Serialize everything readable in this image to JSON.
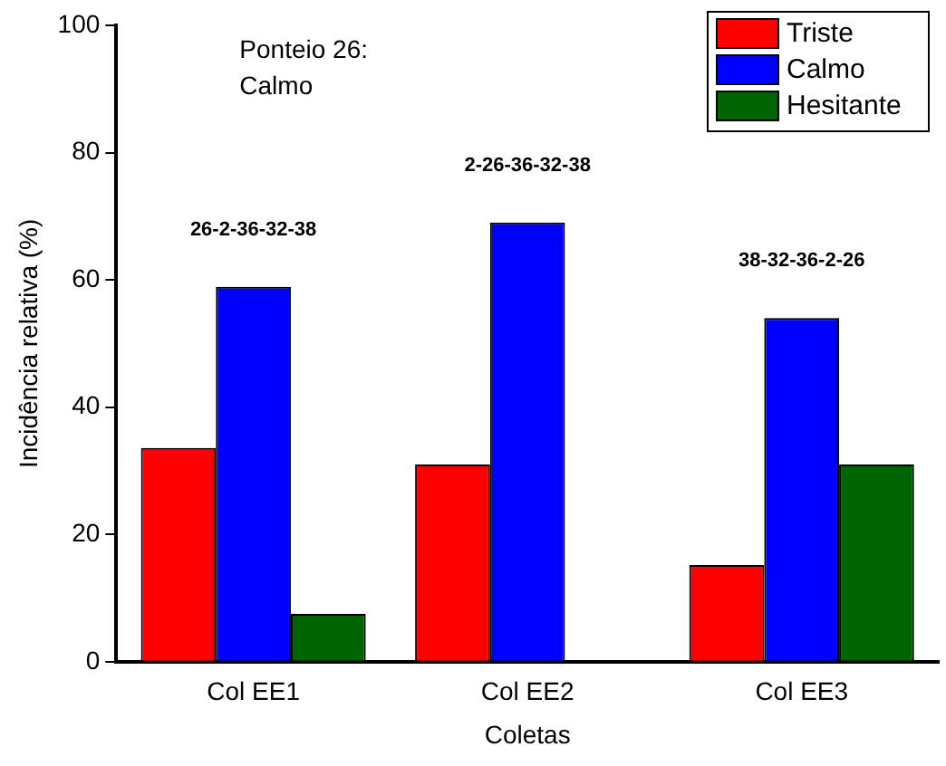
{
  "chart_data": {
    "type": "bar",
    "xlabel": "Coletas",
    "ylabel": "Incidência relativa (%)",
    "categories": [
      "Col EE1",
      "Col EE2",
      "Col EE3"
    ],
    "series": [
      {
        "name": "Triste",
        "color": "#ff0000",
        "values": [
          33.6,
          31,
          15.2
        ]
      },
      {
        "name": "Calmo",
        "color": "#0000ff",
        "values": [
          58.9,
          69,
          54
        ]
      },
      {
        "name": "Hesitante",
        "color": "#006400",
        "values": [
          7.5,
          0,
          31
        ]
      }
    ],
    "ylim": [
      0,
      100
    ],
    "yticks": [
      0,
      20,
      40,
      60,
      80,
      100
    ],
    "grid": false,
    "legend": "top right",
    "annotations": [
      "Ponteio 26:\nCalmo",
      "26-2-36-32-38",
      "2-26-36-32-38",
      "38-32-36-2-26"
    ]
  }
}
